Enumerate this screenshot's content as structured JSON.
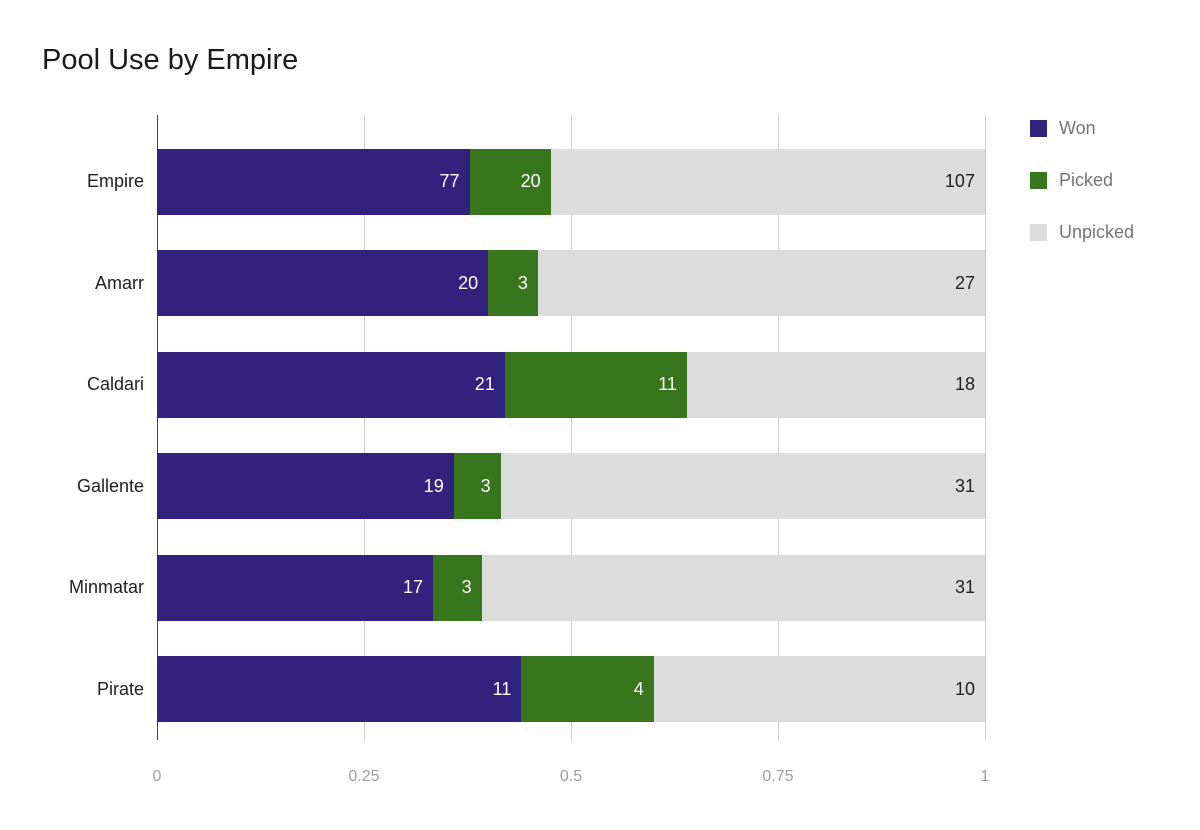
{
  "chart_data": {
    "type": "bar",
    "orientation": "horizontal",
    "stacked": "percent",
    "title": "Pool Use by Empire",
    "categories": [
      "Empire",
      "Amarr",
      "Caldari",
      "Gallente",
      "Minmatar",
      "Pirate"
    ],
    "series": [
      {
        "name": "Won",
        "color": "#33217E",
        "label_color": "#ffffff",
        "values": [
          77,
          20,
          21,
          19,
          17,
          11
        ]
      },
      {
        "name": "Picked",
        "color": "#38761D",
        "label_color": "#ffffff",
        "values": [
          20,
          3,
          11,
          3,
          3,
          4
        ]
      },
      {
        "name": "Unpicked",
        "color": "#DCDCDC",
        "label_color": "#212121",
        "values": [
          107,
          27,
          18,
          31,
          31,
          10
        ]
      }
    ],
    "x_ticks": [
      "0",
      "0.25",
      "0.5",
      "0.75",
      "1"
    ],
    "xlim": [
      0,
      1
    ],
    "grid": true,
    "legend_position": "right"
  }
}
